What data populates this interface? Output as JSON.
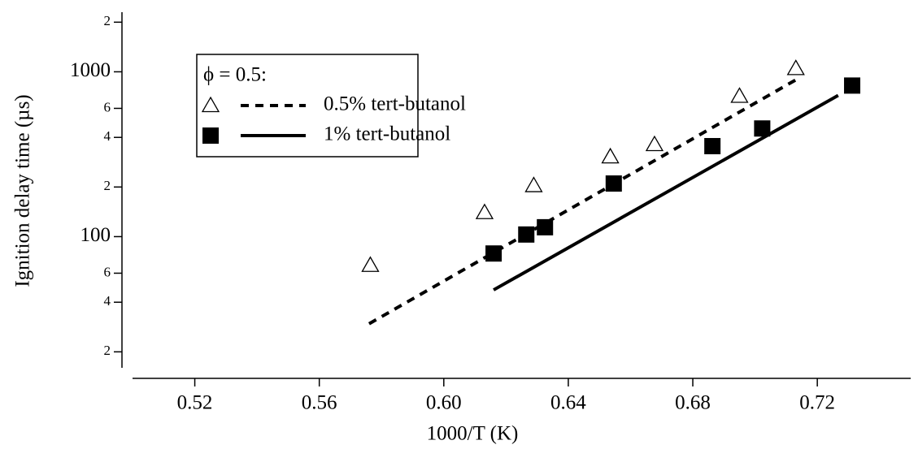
{
  "chart_data": {
    "type": "scatter",
    "x_label": "1000/T (K)",
    "y_label": "Ignition delay time (µs)",
    "legend_title": "ϕ = 0.5:",
    "xlim": [
      0.5,
      0.75
    ],
    "xticks": [
      0.52,
      0.56,
      0.6,
      0.64,
      0.68,
      0.72
    ],
    "xtick_labels": [
      "0.52",
      "0.56",
      "0.60",
      "0.64",
      "0.68",
      "0.72"
    ],
    "ylim": [
      16,
      2300
    ],
    "log_y": true,
    "yticks": [
      {
        "value": 20,
        "label": "2"
      },
      {
        "value": 40,
        "label": "4"
      },
      {
        "value": 60,
        "label": "6"
      },
      100,
      {
        "value": 200,
        "label": "2"
      },
      {
        "value": 400,
        "label": "4"
      },
      {
        "value": 600,
        "label": "6"
      },
      1000,
      {
        "value": 2000,
        "label": "2"
      }
    ],
    "series": [
      {
        "name": "0.5% tert-butanol",
        "marker": "open-triangle",
        "color": "#000000",
        "dashed": true,
        "x": [
          0.5764,
          0.6131,
          0.6289,
          0.6535,
          0.6677,
          0.695,
          0.7131
        ],
        "values": [
          67,
          140,
          204,
          305,
          362,
          711,
          1047
        ],
        "fit": {
          "x": [
            0.576,
            0.7144
          ],
          "values": [
            29.6,
            923
          ]
        }
      },
      {
        "name": "1% tert-butanol",
        "marker": "filled-square",
        "color": "#000000",
        "dashed": false,
        "x": [
          0.616,
          0.6265,
          0.6325,
          0.6546,
          0.6863,
          0.7023,
          0.7312
        ],
        "values": [
          79,
          103,
          114,
          210,
          354,
          453,
          825
        ],
        "fit": {
          "x": [
            0.616,
            0.7267
          ],
          "values": [
            47.5,
            719
          ]
        }
      }
    ]
  }
}
